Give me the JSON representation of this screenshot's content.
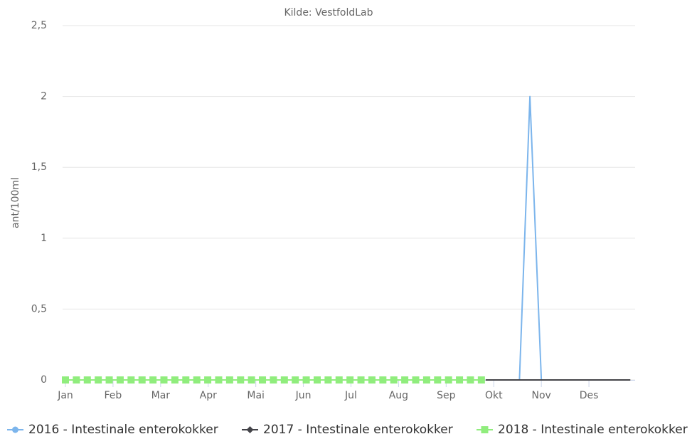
{
  "chart_data": {
    "type": "line",
    "title": "Kilde: VestfoldLab",
    "y_label": "ant/100ml",
    "xlim": [
      0,
      12
    ],
    "xticks": [
      {
        "value": 0,
        "label": "Jan"
      },
      {
        "value": 1,
        "label": "Feb"
      },
      {
        "value": 2,
        "label": "Mar"
      },
      {
        "value": 3,
        "label": "Apr"
      },
      {
        "value": 4,
        "label": "Mai"
      },
      {
        "value": 5,
        "label": "Jun"
      },
      {
        "value": 6,
        "label": "Jul"
      },
      {
        "value": 7,
        "label": "Aug"
      },
      {
        "value": 8,
        "label": "Sep"
      },
      {
        "value": 9,
        "label": "Okt"
      },
      {
        "value": 10,
        "label": "Nov"
      },
      {
        "value": 11,
        "label": "Des"
      }
    ],
    "ylim": [
      0,
      2.5
    ],
    "yticks": [
      0,
      {
        "value": 0.5,
        "label": "0,5"
      },
      1,
      {
        "value": 1.5,
        "label": "1,5"
      },
      2,
      {
        "value": 2.5,
        "label": "2,5"
      }
    ],
    "grid": true,
    "legend": "bottom",
    "series": [
      {
        "name": "2016 - Intestinale enterokokker",
        "color": "#7cb5ec",
        "marker": "circle",
        "show_markers": false,
        "x": [
          9.54,
          9.76,
          10.0
        ],
        "values": [
          0,
          2,
          0
        ]
      },
      {
        "name": "2017 - Intestinale enterokokker",
        "color": "#434348",
        "marker": "diamond",
        "show_markers": false,
        "x": [
          8.83,
          11.87
        ],
        "values": [
          0,
          0
        ]
      },
      {
        "name": "2018 - Intestinale enterokokker",
        "color": "#90ed7d",
        "marker": "square",
        "show_markers": true,
        "x": [
          0,
          0.23,
          0.46,
          0.69,
          0.92,
          1.15,
          1.38,
          1.61,
          1.84,
          2.07,
          2.3,
          2.53,
          2.76,
          2.99,
          3.22,
          3.45,
          3.68,
          3.91,
          4.14,
          4.37,
          4.6,
          4.83,
          5.06,
          5.29,
          5.52,
          5.75,
          5.98,
          6.21,
          6.44,
          6.67,
          6.9,
          7.13,
          7.36,
          7.59,
          7.82,
          8.05,
          8.28,
          8.51,
          8.74
        ],
        "values": [
          0,
          0,
          0,
          0,
          0,
          0,
          0,
          0,
          0,
          0,
          0,
          0,
          0,
          0,
          0,
          0,
          0,
          0,
          0,
          0,
          0,
          0,
          0,
          0,
          0,
          0,
          0,
          0,
          0,
          0,
          0,
          0,
          0,
          0,
          0,
          0,
          0,
          0,
          0
        ]
      }
    ]
  }
}
